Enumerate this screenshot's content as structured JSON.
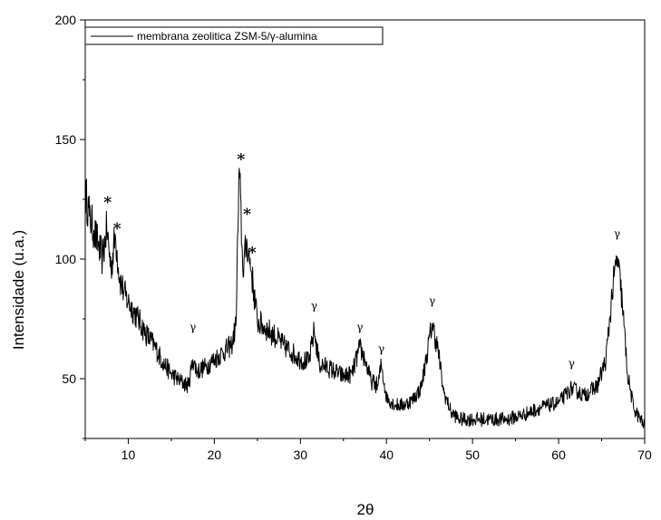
{
  "chart_data": {
    "type": "line",
    "title": "",
    "xlabel": "2θ",
    "ylabel": "Intensidade (u.a.)",
    "xlim": [
      5,
      70
    ],
    "ylim": [
      25,
      200
    ],
    "xticks": [
      10,
      20,
      30,
      40,
      50,
      60,
      70
    ],
    "yticks": [
      50,
      100,
      150,
      200
    ],
    "grid": false,
    "legend_position": "top-left",
    "series": [
      {
        "name": "membrana zeolitica ZSM-5/γ-alumina",
        "color": "#000000",
        "points": [
          [
            5.0,
            128
          ],
          [
            5.5,
            118
          ],
          [
            6.0,
            112
          ],
          [
            6.5,
            106
          ],
          [
            7.0,
            100
          ],
          [
            7.5,
            113
          ],
          [
            8.0,
            96
          ],
          [
            8.5,
            110
          ],
          [
            9.0,
            92
          ],
          [
            9.5,
            86
          ],
          [
            10.0,
            82
          ],
          [
            11.0,
            76
          ],
          [
            12.0,
            69
          ],
          [
            13.0,
            64
          ],
          [
            14.0,
            57
          ],
          [
            15.0,
            52
          ],
          [
            16.0,
            49
          ],
          [
            17.0,
            47
          ],
          [
            17.5,
            58
          ],
          [
            18.0,
            53
          ],
          [
            19.0,
            55
          ],
          [
            20.0,
            58
          ],
          [
            21.0,
            61
          ],
          [
            22.0,
            64
          ],
          [
            22.5,
            72
          ],
          [
            22.9,
            138
          ],
          [
            23.3,
            96
          ],
          [
            23.8,
            107
          ],
          [
            24.3,
            95
          ],
          [
            25.0,
            74
          ],
          [
            26.0,
            71
          ],
          [
            27.0,
            68
          ],
          [
            28.0,
            64
          ],
          [
            29.0,
            61
          ],
          [
            30.0,
            58
          ],
          [
            31.0,
            57
          ],
          [
            31.6,
            70
          ],
          [
            32.2,
            56
          ],
          [
            33.0,
            55
          ],
          [
            34.0,
            53
          ],
          [
            35.0,
            51
          ],
          [
            36.0,
            52
          ],
          [
            36.9,
            63
          ],
          [
            37.5,
            58
          ],
          [
            38.2,
            49
          ],
          [
            39.0,
            47
          ],
          [
            39.4,
            56
          ],
          [
            40.0,
            42
          ],
          [
            41.0,
            39
          ],
          [
            42.0,
            39
          ],
          [
            43.0,
            41
          ],
          [
            44.0,
            46
          ],
          [
            44.6,
            58
          ],
          [
            45.3,
            73
          ],
          [
            46.0,
            62
          ],
          [
            46.6,
            45
          ],
          [
            47.5,
            36
          ],
          [
            48.5,
            33
          ],
          [
            50.0,
            33
          ],
          [
            52.0,
            33
          ],
          [
            54.0,
            33
          ],
          [
            56.0,
            35
          ],
          [
            58.0,
            38
          ],
          [
            60.0,
            40
          ],
          [
            61.5,
            46
          ],
          [
            63.0,
            43
          ],
          [
            64.5,
            47
          ],
          [
            65.5,
            58
          ],
          [
            66.2,
            85
          ],
          [
            66.8,
            101
          ],
          [
            67.4,
            82
          ],
          [
            68.0,
            52
          ],
          [
            68.7,
            38
          ],
          [
            69.3,
            34
          ],
          [
            70.0,
            30
          ]
        ]
      }
    ],
    "annotations": [
      {
        "text": "*",
        "x": 7.6,
        "y": 125
      },
      {
        "text": "*",
        "x": 8.7,
        "y": 114
      },
      {
        "text": "*",
        "x": 23.1,
        "y": 143
      },
      {
        "text": "*",
        "x": 23.8,
        "y": 120
      },
      {
        "text": "*",
        "x": 24.4,
        "y": 104
      },
      {
        "text": "γ",
        "x": 17.5,
        "y": 70
      },
      {
        "text": "γ",
        "x": 31.6,
        "y": 79
      },
      {
        "text": "γ",
        "x": 36.9,
        "y": 70
      },
      {
        "text": "γ",
        "x": 39.4,
        "y": 61
      },
      {
        "text": "γ",
        "x": 45.3,
        "y": 81
      },
      {
        "text": "γ",
        "x": 61.5,
        "y": 55
      },
      {
        "text": "γ",
        "x": 66.8,
        "y": 109
      }
    ]
  }
}
